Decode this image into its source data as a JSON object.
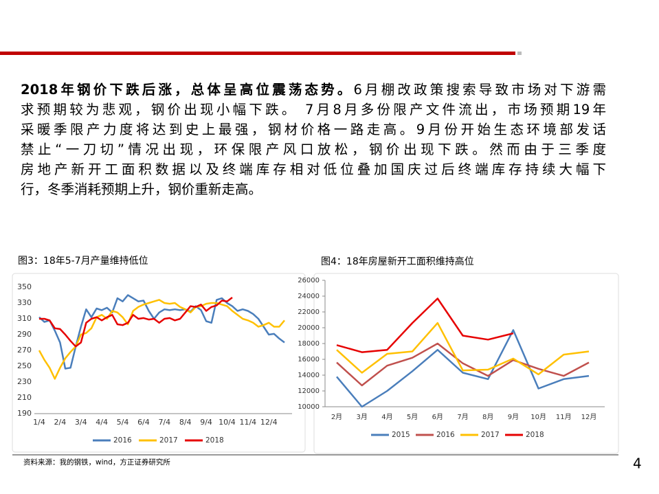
{
  "paragraph": {
    "lead": "2018年钢价下跌后涨，总体呈高位震荡态势。",
    "lines": [
      "6月棚改政策搜索导致市场对下游需",
      "求预期较为悲观，钢价出现小幅下跌。 7月8月多份限产文件流出，市场预期19年",
      "采暖季限产力度将达到史上最强，钢材价格一路走高。9月份开始生态环境部发话",
      "禁止“一刀切”情况出现，环保限产风口放松，钢价出现下跌。然而由于三季度",
      "房地产新开工面积数据以及终端库存相对低位叠加国庆过后终端库存持续大幅下",
      "行，冬季消耗预期上升，钢价重新走高。"
    ]
  },
  "chart_data": [
    {
      "type": "line",
      "title": "图3：18年5-7月产量维持低位",
      "categories": [
        "1/4",
        null,
        null,
        null,
        "2/4",
        null,
        null,
        null,
        "3/4",
        null,
        null,
        null,
        "4/4",
        null,
        null,
        null,
        "5/4",
        null,
        null,
        null,
        "6/4",
        null,
        null,
        null,
        "7/4",
        null,
        null,
        null,
        "8/4",
        null,
        null,
        null,
        "9/4",
        null,
        null,
        null,
        "10/4",
        null,
        null,
        null,
        "11/4",
        null,
        null,
        null,
        "12/4",
        null,
        null,
        null
      ],
      "series": [
        {
          "name": "2016",
          "color": "#4a7ebb",
          "values": [
            312,
            306,
            308,
            295,
            280,
            247,
            248,
            275,
            300,
            322,
            312,
            323,
            321,
            324,
            318,
            336,
            332,
            340,
            336,
            332,
            333,
            320,
            310,
            318,
            322,
            321,
            322,
            321,
            322,
            319,
            326,
            321,
            307,
            305,
            334,
            336,
            330,
            326,
            320,
            322,
            320,
            316,
            310,
            300,
            290,
            291,
            285,
            280
          ]
        },
        {
          "name": "2017",
          "color": "#ffc000",
          "values": [
            270,
            258,
            248,
            234,
            248,
            260,
            268,
            275,
            290,
            292,
            298,
            312,
            315,
            310,
            320,
            318,
            312,
            303,
            320,
            325,
            328,
            330,
            332,
            334,
            330,
            329,
            330,
            325,
            322,
            318,
            325,
            326,
            329,
            330,
            330,
            328,
            326,
            320,
            315,
            310,
            308,
            305,
            300,
            302,
            305,
            300,
            300,
            308
          ]
        },
        {
          "name": "2018",
          "color": "#e60000",
          "values": [
            310,
            310,
            308,
            298,
            297,
            290,
            282,
            275,
            280,
            305,
            310,
            312,
            308,
            312,
            315,
            303,
            302,
            305,
            315,
            310,
            311,
            309,
            310,
            305,
            310,
            311,
            308,
            310,
            318,
            326,
            325,
            328,
            320,
            325,
            327,
            333,
            332,
            337,
            null,
            null,
            null,
            null,
            null,
            null,
            null,
            null,
            null,
            null
          ]
        }
      ],
      "ylim": [
        190,
        350
      ],
      "yticks": [
        190,
        210,
        230,
        250,
        270,
        290,
        310,
        330,
        350
      ]
    },
    {
      "type": "line",
      "title": "图4：18年房屋新开工面积维持高位",
      "categories": [
        "2月",
        "3月",
        "4月",
        "5月",
        "6月",
        "7月",
        "8月",
        "9月",
        "10月",
        "11月",
        "12月"
      ],
      "series": [
        {
          "name": "2015",
          "color": "#4a7ebb",
          "values": [
            13800,
            10000,
            12000,
            14500,
            17200,
            14300,
            13500,
            19700,
            12300,
            13500,
            13900
          ]
        },
        {
          "name": "2016",
          "color": "#c0504d",
          "values": [
            15600,
            12700,
            15200,
            16200,
            18000,
            15500,
            13900,
            15900,
            14800,
            13900,
            15600
          ]
        },
        {
          "name": "2017",
          "color": "#ffc000",
          "values": [
            17200,
            14300,
            16700,
            17000,
            20600,
            14600,
            14700,
            16100,
            14100,
            16600,
            17000
          ]
        },
        {
          "name": "2018",
          "color": "#e60000",
          "values": [
            17800,
            16900,
            17200,
            20600,
            23700,
            19000,
            18500,
            19300,
            null,
            null,
            null
          ]
        }
      ],
      "ylim": [
        10000,
        26000
      ],
      "yticks": [
        10000,
        12000,
        14000,
        16000,
        18000,
        20000,
        22000,
        24000,
        26000
      ]
    }
  ],
  "source": "资料来源：我的钢铁，wind，方正证券研究所",
  "page_number": "4"
}
